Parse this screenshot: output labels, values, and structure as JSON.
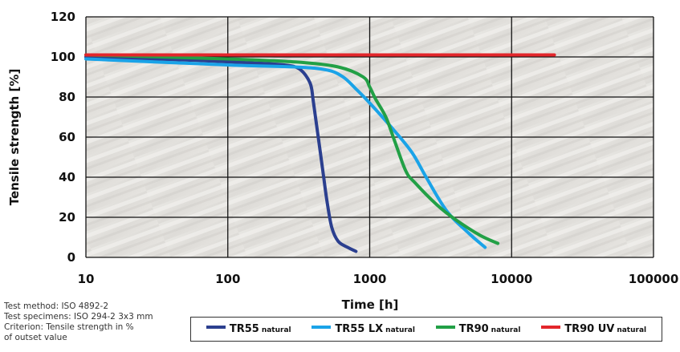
{
  "chart_data": {
    "type": "line",
    "xlabel": "Time [h]",
    "ylabel": "Tensile strength [%]",
    "x_scale": "log",
    "xlim": [
      10,
      100000
    ],
    "ylim": [
      0,
      120
    ],
    "x_ticks": [
      "10",
      "100",
      "1000",
      "10000",
      "100000"
    ],
    "y_ticks": [
      "0",
      "20",
      "40",
      "60",
      "80",
      "100",
      "120"
    ],
    "grid": true,
    "legend_position": "bottom",
    "series": [
      {
        "name": "TR55",
        "name_suffix": "natural",
        "color": "#2b3f8f",
        "points": [
          [
            10,
            100
          ],
          [
            50,
            98.5
          ],
          [
            150,
            97
          ],
          [
            250,
            96
          ],
          [
            320,
            94
          ],
          [
            380,
            87
          ],
          [
            400,
            78
          ],
          [
            430,
            62
          ],
          [
            470,
            42
          ],
          [
            500,
            28
          ],
          [
            540,
            15
          ],
          [
            600,
            8
          ],
          [
            700,
            5
          ],
          [
            800,
            3
          ]
        ]
      },
      {
        "name": "TR55 LX",
        "name_suffix": "natural",
        "color": "#1aa3e8",
        "points": [
          [
            10,
            99
          ],
          [
            100,
            96
          ],
          [
            300,
            95
          ],
          [
            500,
            93.5
          ],
          [
            650,
            90
          ],
          [
            800,
            84
          ],
          [
            1000,
            77
          ],
          [
            1500,
            63
          ],
          [
            2000,
            52
          ],
          [
            2500,
            40
          ],
          [
            3500,
            23
          ],
          [
            5000,
            12
          ],
          [
            6500,
            5
          ]
        ]
      },
      {
        "name": "TR90",
        "name_suffix": "natural",
        "color": "#22a046",
        "points": [
          [
            10,
            101
          ],
          [
            100,
            99
          ],
          [
            300,
            97.5
          ],
          [
            600,
            95
          ],
          [
            900,
            90
          ],
          [
            1000,
            85
          ],
          [
            1100,
            79
          ],
          [
            1300,
            70
          ],
          [
            1500,
            58
          ],
          [
            1800,
            43
          ],
          [
            2100,
            37
          ],
          [
            3000,
            26
          ],
          [
            4000,
            19
          ],
          [
            6000,
            11
          ],
          [
            8000,
            7
          ]
        ]
      },
      {
        "name": "TR90 UV",
        "name_suffix": "natural",
        "color": "#e3262b",
        "points": [
          [
            10,
            101
          ],
          [
            20000,
            101
          ]
        ]
      }
    ],
    "annotations": [
      "Test method: ISO 4892-2",
      "Test specimens: ISO 294-2 3x3 mm",
      "Criterion: Tensile strength in %",
      "of outset value"
    ]
  }
}
